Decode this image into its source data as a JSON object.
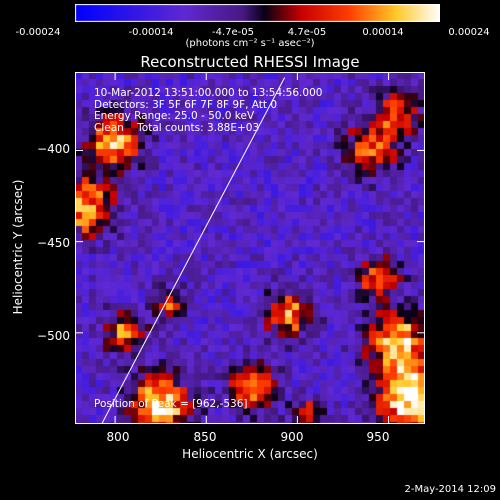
{
  "colorbar": {
    "ticks": [
      "-0.00024",
      "-0.00014",
      "-4.7e-05",
      "4.7e-05",
      "0.00014",
      "0.00024"
    ],
    "units": "(photons cm⁻² s⁻¹ asec⁻²)"
  },
  "chart_data": {
    "type": "heatmap",
    "title": "Reconstructed RHESSI Image",
    "xlabel": "Heliocentric X (arcsec)",
    "ylabel": "Heliocentric Y (arcsec)",
    "xlim": [
      778,
      970
    ],
    "ylim": [
      -550,
      -357
    ],
    "x_ticks": [
      800,
      850,
      900,
      950
    ],
    "y_ticks": [
      -400,
      -450,
      -500
    ],
    "x_tick_labels": [
      "800",
      "850",
      "900",
      "950"
    ],
    "y_tick_labels": [
      "−400",
      "−450",
      "−500"
    ],
    "color_range": [
      -0.00024,
      0.00024
    ],
    "colormap": "blue-purple-red-yellow-white",
    "peak": [
      962,
      -536
    ],
    "limb_line": [
      [
        790,
        -555
      ],
      [
        893,
        -360
      ]
    ],
    "hot_regions": [
      {
        "x": 800,
        "y": -395,
        "r": 10,
        "v": 0.00018
      },
      {
        "x": 781,
        "y": -430,
        "r": 12,
        "v": 0.00017
      },
      {
        "x": 805,
        "y": -500,
        "r": 8,
        "v": 0.00012
      },
      {
        "x": 830,
        "y": -485,
        "r": 6,
        "v": 9e-05
      },
      {
        "x": 825,
        "y": -540,
        "r": 12,
        "v": 0.0002
      },
      {
        "x": 875,
        "y": -530,
        "r": 9,
        "v": 0.00013
      },
      {
        "x": 895,
        "y": -490,
        "r": 9,
        "v": 0.00013
      },
      {
        "x": 940,
        "y": -400,
        "r": 10,
        "v": 0.00012
      },
      {
        "x": 955,
        "y": -380,
        "r": 9,
        "v": 0.0001
      },
      {
        "x": 945,
        "y": -470,
        "r": 8,
        "v": 0.00012
      },
      {
        "x": 955,
        "y": -505,
        "r": 12,
        "v": 0.00018
      },
      {
        "x": 963,
        "y": -537,
        "r": 13,
        "v": 0.00024
      },
      {
        "x": 905,
        "y": -545,
        "r": 6,
        "v": 8e-05
      }
    ]
  },
  "info": {
    "line1": "10-Mar-2012 13:51:00.000 to 13:54:56.000",
    "line2": "Detectors: 3F 5F 6F 7F 8F 9F, Att 0",
    "line3": "Energy Range: 25.0 - 50.0 keV",
    "line4": "Clean    Total counts: 3.88E+03",
    "peak_label": "Position of Peak = [962,-536]"
  },
  "date_stamp": "2-May-2014 12:09"
}
